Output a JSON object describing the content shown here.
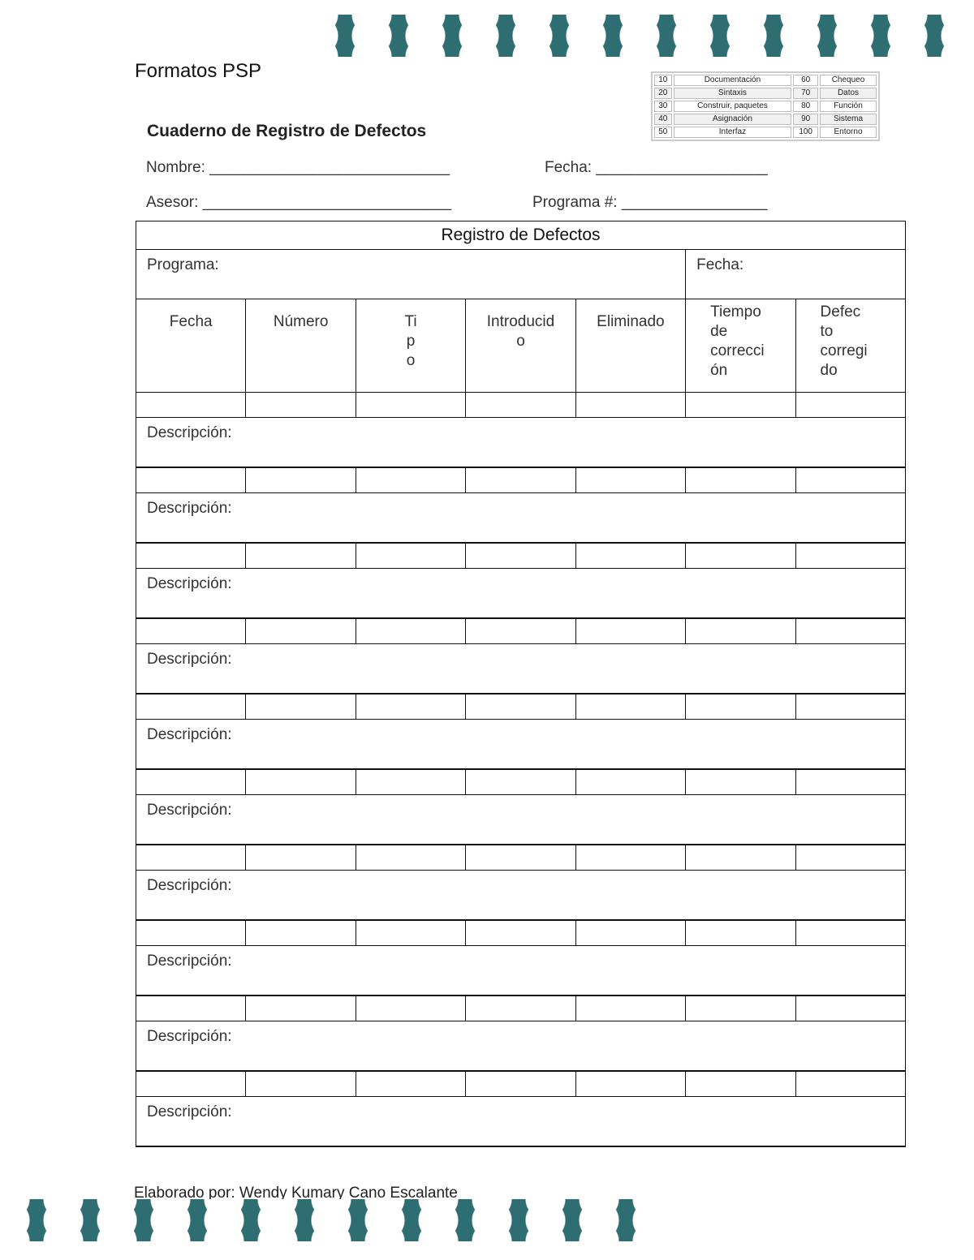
{
  "header": {
    "title": "Formatos PSP",
    "form_title": "Cuaderno de Registro de Defectos"
  },
  "defect_types": [
    [
      "10",
      "Documentación",
      "60",
      "Chequeo"
    ],
    [
      "20",
      "Sintaxis",
      "70",
      "Datos"
    ],
    [
      "30",
      "Construir, paquetes",
      "80",
      "Función"
    ],
    [
      "40",
      "Asignación",
      "90",
      "Sistema"
    ],
    [
      "50",
      "Interfaz",
      "100",
      "Entorno"
    ]
  ],
  "fields": {
    "nombre": "Nombre: ____________________________",
    "fecha": "Fecha: ____________________",
    "asesor": "Asesor: _____________________________",
    "programa": "Programa #: _________________"
  },
  "log": {
    "title": "Registro de Defectos",
    "programa_label": "Programa:",
    "fecha_label": "Fecha:",
    "columns": [
      "Fecha",
      "Número",
      "Ti\np\no",
      "Introducid\no",
      "Eliminado",
      "Tiempo\nde\ncorrecci\nón",
      "Defec\nto\ncorregi\ndo"
    ],
    "description_label": "Descripción:",
    "entries": 10
  },
  "footer": "Elaborado por: Wendy Kumary Cano Escalante",
  "colors": {
    "accent": "#2e6e72"
  }
}
